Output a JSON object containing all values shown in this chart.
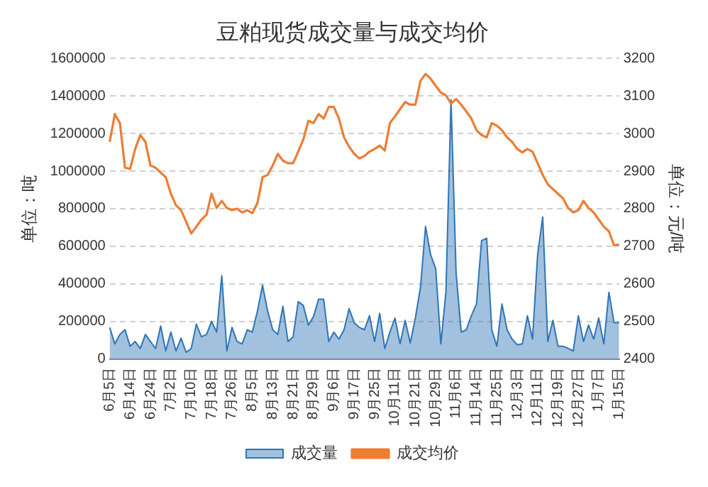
{
  "chart_data": {
    "type": "line",
    "title": "豆粕现货成交量与成交均价",
    "ylabel": "单位：吨",
    "y2label": "单位：元/吨",
    "categories": [
      "6月5日",
      null,
      null,
      null,
      "6月14日",
      null,
      null,
      null,
      "6月24日",
      null,
      null,
      null,
      "7月2日",
      null,
      null,
      null,
      "7月10日",
      null,
      null,
      null,
      "7月18日",
      null,
      null,
      null,
      "7月26日",
      null,
      null,
      null,
      "8月5日",
      null,
      null,
      null,
      "8月13日",
      null,
      null,
      null,
      "8月21日",
      null,
      null,
      null,
      "8月29日",
      null,
      null,
      null,
      "9月6日",
      null,
      null,
      null,
      "9月17日",
      null,
      null,
      null,
      "9月25日",
      null,
      null,
      null,
      "10月11日",
      null,
      null,
      null,
      "10月21日",
      null,
      null,
      null,
      "10月29日",
      null,
      null,
      null,
      "11月6日",
      null,
      null,
      null,
      "11月14日",
      null,
      null,
      null,
      "11月25日",
      null,
      null,
      null,
      "12月3日",
      null,
      null,
      null,
      "12月11日",
      null,
      null,
      null,
      "12月19日",
      null,
      null,
      null,
      "12月27日",
      null,
      null,
      null,
      "1月7日",
      null,
      null,
      null,
      "1月15日"
    ],
    "series": [
      {
        "name": "成交量",
        "type": "area",
        "color": "#2e75b6",
        "values": [
          167500,
          80000,
          130000,
          155000,
          67500,
          92500,
          55000,
          130000,
          92500,
          55000,
          175000,
          42500,
          142500,
          42500,
          110000,
          35000,
          55000,
          185000,
          117500,
          130000,
          200000,
          142500,
          442500,
          42500,
          167500,
          92500,
          80000,
          155000,
          142500,
          255000,
          392500,
          255000,
          155000,
          130000,
          280000,
          92500,
          117500,
          305000,
          285000,
          180000,
          225000,
          317500,
          317500,
          92500,
          142500,
          105000,
          155000,
          267500,
          192500,
          167500,
          155000,
          230000,
          92500,
          242500,
          55000,
          142500,
          217500,
          80000,
          205000,
          85000,
          217500,
          380000,
          705000,
          555000,
          480000,
          80000,
          355000,
          1380000,
          455000,
          142500,
          155000,
          230000,
          292500,
          630000,
          642500,
          155000,
          67500,
          292500,
          155000,
          105000,
          75000,
          80000,
          230000,
          105000,
          555000,
          755000,
          92500,
          205000,
          67500,
          67500,
          55000,
          42500,
          230000,
          92500,
          180000,
          105000,
          217500,
          80000,
          355000,
          192500,
          192500
        ]
      },
      {
        "name": "成交均价",
        "type": "line",
        "axis": "y2",
        "color": "#ed7d31",
        "values": [
          2978,
          3052,
          3028,
          2909,
          2906,
          2959,
          2996,
          2978,
          2915,
          2909,
          2896,
          2884,
          2840,
          2809,
          2796,
          2765,
          2734,
          2752,
          2771,
          2784,
          2840,
          2802,
          2821,
          2802,
          2796,
          2800,
          2790,
          2796,
          2788,
          2815,
          2884,
          2890,
          2915,
          2946,
          2928,
          2921,
          2921,
          2952,
          2984,
          3034,
          3028,
          3052,
          3040,
          3071,
          3071,
          3040,
          2990,
          2965,
          2946,
          2934,
          2940,
          2952,
          2959,
          2968,
          2955,
          3028,
          3046,
          3065,
          3084,
          3077,
          3077,
          3140,
          3159,
          3146,
          3127,
          3109,
          3102,
          3080,
          3092,
          3077,
          3059,
          3040,
          3009,
          2996,
          2990,
          3028,
          3021,
          3009,
          2990,
          2978,
          2959,
          2950,
          2959,
          2952,
          2921,
          2890,
          2865,
          2852,
          2840,
          2827,
          2802,
          2790,
          2796,
          2821,
          2802,
          2790,
          2771,
          2752,
          2740,
          2702,
          2705
        ]
      }
    ],
    "ylim": [
      0,
      1600000
    ],
    "yticks": [
      0,
      200000,
      400000,
      600000,
      800000,
      1000000,
      1200000,
      1400000,
      1600000
    ],
    "y2lim": [
      2400,
      3200
    ],
    "y2ticks": [
      2400,
      2500,
      2600,
      2700,
      2800,
      2900,
      3000,
      3100,
      3200
    ],
    "grid": "y",
    "legend": "bottom",
    "marker": "none",
    "line_style": "solid"
  }
}
